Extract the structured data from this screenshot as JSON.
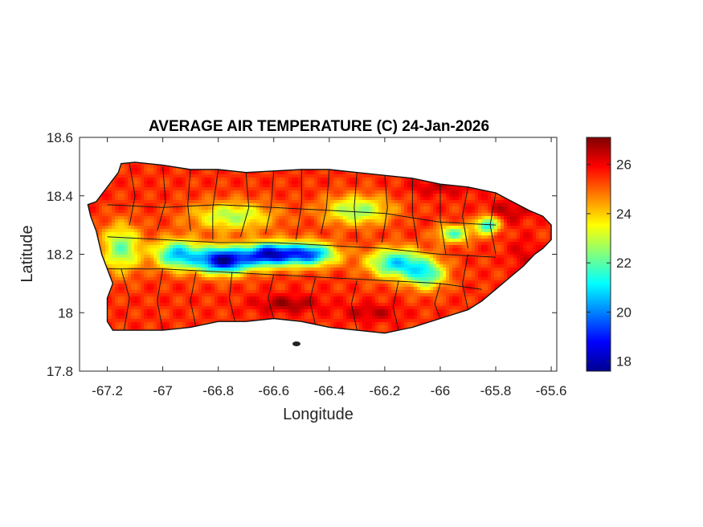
{
  "chart_data": {
    "type": "heatmap",
    "title": "AVERAGE AIR TEMPERATURE (C) 24-Jan-2026",
    "xlabel": "Longitude",
    "ylabel": "Latitude",
    "xlim": [
      -67.3,
      -65.58
    ],
    "ylim": [
      17.8,
      18.6
    ],
    "x_ticks": [
      -67.2,
      -67,
      -66.8,
      -66.6,
      -66.4,
      -66.2,
      -66,
      -65.8,
      -65.6
    ],
    "x_tick_labels": [
      "-67.2",
      "-67",
      "-66.8",
      "-66.6",
      "-66.4",
      "-66.2",
      "-66",
      "-65.8",
      "-65.6"
    ],
    "y_ticks": [
      17.8,
      18,
      18.2,
      18.4,
      18.6
    ],
    "y_tick_labels": [
      "17.8",
      "18",
      "18.2",
      "18.4",
      "18.6"
    ],
    "colorbar": {
      "range": [
        17.6,
        27.1
      ],
      "ticks": [
        18,
        20,
        22,
        24,
        26
      ],
      "tick_labels": [
        "18",
        "20",
        "22",
        "24",
        "26"
      ],
      "colormap": "jet"
    },
    "island_outline": [
      [
        -67.27,
        18.37
      ],
      [
        -67.24,
        18.38
      ],
      [
        -67.2,
        18.43
      ],
      [
        -67.16,
        18.48
      ],
      [
        -67.15,
        18.51
      ],
      [
        -67.1,
        18.515
      ],
      [
        -67.0,
        18.505
      ],
      [
        -66.9,
        18.49
      ],
      [
        -66.8,
        18.49
      ],
      [
        -66.7,
        18.48
      ],
      [
        -66.6,
        18.485
      ],
      [
        -66.5,
        18.49
      ],
      [
        -66.4,
        18.49
      ],
      [
        -66.3,
        18.48
      ],
      [
        -66.2,
        18.47
      ],
      [
        -66.1,
        18.46
      ],
      [
        -66.0,
        18.44
      ],
      [
        -65.9,
        18.43
      ],
      [
        -65.8,
        18.41
      ],
      [
        -65.74,
        18.38
      ],
      [
        -65.68,
        18.35
      ],
      [
        -65.63,
        18.33
      ],
      [
        -65.6,
        18.3
      ],
      [
        -65.6,
        18.25
      ],
      [
        -65.63,
        18.22
      ],
      [
        -65.66,
        18.2
      ],
      [
        -65.7,
        18.16
      ],
      [
        -65.75,
        18.12
      ],
      [
        -65.8,
        18.08
      ],
      [
        -65.85,
        18.04
      ],
      [
        -65.9,
        18.01
      ],
      [
        -66.0,
        17.98
      ],
      [
        -66.1,
        17.95
      ],
      [
        -66.2,
        17.93
      ],
      [
        -66.3,
        17.94
      ],
      [
        -66.4,
        17.95
      ],
      [
        -66.5,
        17.97
      ],
      [
        -66.6,
        17.98
      ],
      [
        -66.7,
        17.97
      ],
      [
        -66.8,
        17.97
      ],
      [
        -66.9,
        17.95
      ],
      [
        -67.0,
        17.94
      ],
      [
        -67.1,
        17.94
      ],
      [
        -67.18,
        17.94
      ],
      [
        -67.2,
        17.97
      ],
      [
        -67.2,
        18.05
      ],
      [
        -67.18,
        18.1
      ],
      [
        -67.2,
        18.15
      ],
      [
        -67.22,
        18.2
      ],
      [
        -67.24,
        18.28
      ],
      [
        -67.26,
        18.33
      ]
    ],
    "temperature_field": {
      "background": 25.5,
      "features": [
        {
          "lon": -66.78,
          "lat": 18.18,
          "value": 17.8,
          "spread_lon": 0.1,
          "spread_lat": 0.045
        },
        {
          "lon": -66.62,
          "lat": 18.2,
          "value": 19.2,
          "spread_lon": 0.08,
          "spread_lat": 0.04
        },
        {
          "lon": -66.48,
          "lat": 18.2,
          "value": 19.4,
          "spread_lon": 0.1,
          "spread_lat": 0.04
        },
        {
          "lon": -66.95,
          "lat": 18.2,
          "value": 20.8,
          "spread_lon": 0.08,
          "spread_lat": 0.05
        },
        {
          "lon": -66.16,
          "lat": 18.17,
          "value": 21.0,
          "spread_lon": 0.1,
          "spread_lat": 0.05
        },
        {
          "lon": -65.83,
          "lat": 18.3,
          "value": 21.0,
          "spread_lon": 0.04,
          "spread_lat": 0.03
        },
        {
          "lon": -65.95,
          "lat": 18.27,
          "value": 22.0,
          "spread_lon": 0.06,
          "spread_lat": 0.03
        },
        {
          "lon": -67.15,
          "lat": 18.22,
          "value": 22.2,
          "spread_lon": 0.07,
          "spread_lat": 0.08
        },
        {
          "lon": -66.3,
          "lat": 18.35,
          "value": 22.5,
          "spread_lon": 0.12,
          "spread_lat": 0.05
        },
        {
          "lon": -66.75,
          "lat": 18.33,
          "value": 22.8,
          "spread_lon": 0.15,
          "spread_lat": 0.05
        },
        {
          "lon": -66.05,
          "lat": 18.13,
          "value": 21.8,
          "spread_lon": 0.07,
          "spread_lat": 0.05
        },
        {
          "lon": -66.55,
          "lat": 18.03,
          "value": 26.8,
          "spread_lon": 0.12,
          "spread_lat": 0.03
        },
        {
          "lon": -66.25,
          "lat": 18.0,
          "value": 26.5,
          "spread_lon": 0.1,
          "spread_lat": 0.03
        },
        {
          "lon": -65.75,
          "lat": 18.35,
          "value": 26.5,
          "spread_lon": 0.08,
          "spread_lat": 0.04
        },
        {
          "lon": -66.0,
          "lat": 18.43,
          "value": 26.4,
          "spread_lon": 0.12,
          "spread_lat": 0.03
        },
        {
          "lon": -65.7,
          "lat": 18.2,
          "value": 26.2,
          "spread_lon": 0.05,
          "spread_lat": 0.06
        }
      ]
    },
    "municipality_lines": [
      [
        [
          -67.12,
          18.51
        ],
        [
          -67.1,
          18.4
        ],
        [
          -67.12,
          18.3
        ]
      ],
      [
        [
          -67.0,
          18.5
        ],
        [
          -66.99,
          18.38
        ],
        [
          -67.02,
          18.28
        ]
      ],
      [
        [
          -66.9,
          18.49
        ],
        [
          -66.91,
          18.37
        ],
        [
          -66.9,
          18.28
        ]
      ],
      [
        [
          -66.8,
          18.49
        ],
        [
          -66.82,
          18.36
        ],
        [
          -66.82,
          18.25
        ]
      ],
      [
        [
          -66.7,
          18.48
        ],
        [
          -66.69,
          18.36
        ],
        [
          -66.72,
          18.26
        ]
      ],
      [
        [
          -66.6,
          18.485
        ],
        [
          -66.61,
          18.36
        ],
        [
          -66.63,
          18.27
        ]
      ],
      [
        [
          -66.5,
          18.49
        ],
        [
          -66.5,
          18.37
        ],
        [
          -66.52,
          18.25
        ]
      ],
      [
        [
          -66.4,
          18.49
        ],
        [
          -66.41,
          18.36
        ],
        [
          -66.43,
          18.27
        ]
      ],
      [
        [
          -66.3,
          18.48
        ],
        [
          -66.31,
          18.36
        ],
        [
          -66.3,
          18.24
        ]
      ],
      [
        [
          -66.2,
          18.47
        ],
        [
          -66.19,
          18.36
        ],
        [
          -66.21,
          18.24
        ]
      ],
      [
        [
          -66.1,
          18.46
        ],
        [
          -66.1,
          18.34
        ],
        [
          -66.08,
          18.22
        ]
      ],
      [
        [
          -66.0,
          18.44
        ],
        [
          -66.0,
          18.32
        ],
        [
          -65.98,
          18.2
        ]
      ],
      [
        [
          -65.9,
          18.43
        ],
        [
          -65.92,
          18.33
        ],
        [
          -65.9,
          18.22
        ]
      ],
      [
        [
          -65.8,
          18.41
        ],
        [
          -65.82,
          18.3
        ],
        [
          -65.8,
          18.2
        ]
      ],
      [
        [
          -67.2,
          18.37
        ],
        [
          -67.0,
          18.36
        ],
        [
          -66.8,
          18.37
        ],
        [
          -66.6,
          18.36
        ],
        [
          -66.4,
          18.35
        ],
        [
          -66.2,
          18.34
        ],
        [
          -66.0,
          18.31
        ],
        [
          -65.8,
          18.3
        ]
      ],
      [
        [
          -67.2,
          18.26
        ],
        [
          -67.0,
          18.25
        ],
        [
          -66.8,
          18.24
        ],
        [
          -66.6,
          18.24
        ],
        [
          -66.4,
          18.23
        ],
        [
          -66.2,
          18.22
        ],
        [
          -66.0,
          18.2
        ],
        [
          -65.8,
          18.19
        ]
      ],
      [
        [
          -67.2,
          18.15
        ],
        [
          -67.0,
          18.15
        ],
        [
          -66.8,
          18.14
        ],
        [
          -66.6,
          18.13
        ],
        [
          -66.4,
          18.12
        ],
        [
          -66.2,
          18.11
        ],
        [
          -66.0,
          18.1
        ],
        [
          -65.85,
          18.08
        ]
      ],
      [
        [
          -67.15,
          18.15
        ],
        [
          -67.12,
          18.05
        ],
        [
          -67.14,
          17.94
        ]
      ],
      [
        [
          -67.0,
          18.15
        ],
        [
          -67.02,
          18.04
        ],
        [
          -67.0,
          17.94
        ]
      ],
      [
        [
          -66.88,
          18.14
        ],
        [
          -66.9,
          18.04
        ],
        [
          -66.88,
          17.95
        ]
      ],
      [
        [
          -66.75,
          18.14
        ],
        [
          -66.76,
          18.05
        ],
        [
          -66.74,
          17.97
        ]
      ],
      [
        [
          -66.6,
          18.13
        ],
        [
          -66.62,
          18.05
        ],
        [
          -66.6,
          17.98
        ]
      ],
      [
        [
          -66.45,
          18.12
        ],
        [
          -66.47,
          18.04
        ],
        [
          -66.45,
          17.96
        ]
      ],
      [
        [
          -66.3,
          18.11
        ],
        [
          -66.32,
          18.03
        ],
        [
          -66.3,
          17.94
        ]
      ],
      [
        [
          -66.15,
          18.11
        ],
        [
          -66.17,
          18.02
        ],
        [
          -66.15,
          17.94
        ]
      ],
      [
        [
          -66.0,
          18.1
        ],
        [
          -66.02,
          18.03
        ],
        [
          -66.0,
          17.98
        ]
      ],
      [
        [
          -65.9,
          18.2
        ],
        [
          -65.92,
          18.1
        ],
        [
          -65.9,
          18.01
        ]
      ]
    ]
  }
}
